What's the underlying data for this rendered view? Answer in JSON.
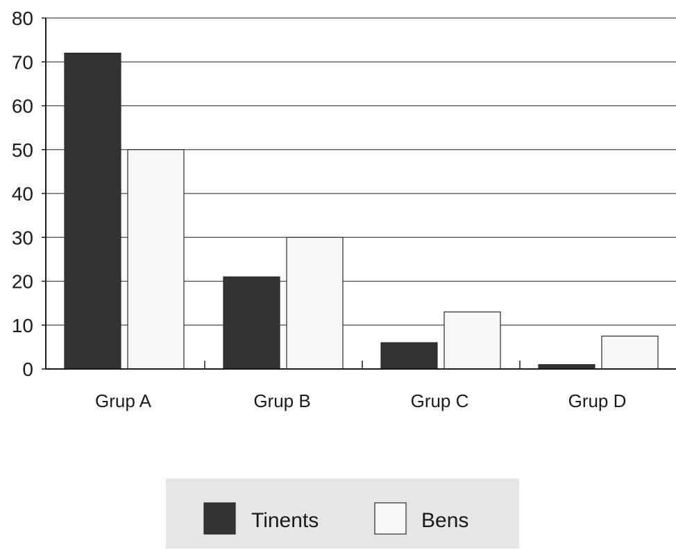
{
  "chart_data": {
    "type": "bar",
    "categories": [
      "Grup A",
      "Grup B",
      "Grup C",
      "Grup D"
    ],
    "series": [
      {
        "name": "Tinents",
        "values": [
          72,
          21,
          6,
          1
        ],
        "color": "#333333"
      },
      {
        "name": "Bens",
        "values": [
          50,
          30,
          13,
          7.5
        ],
        "color": "#f7f7f7"
      }
    ],
    "title": "",
    "xlabel": "",
    "ylabel": "",
    "ylim": [
      0,
      80
    ],
    "yticks": [
      0,
      10,
      20,
      30,
      40,
      50,
      60,
      70,
      80
    ],
    "grid": true,
    "legend_position": "bottom-center",
    "legend_background": "#e6e6e6",
    "gridline_color": "#4a4a4a"
  }
}
